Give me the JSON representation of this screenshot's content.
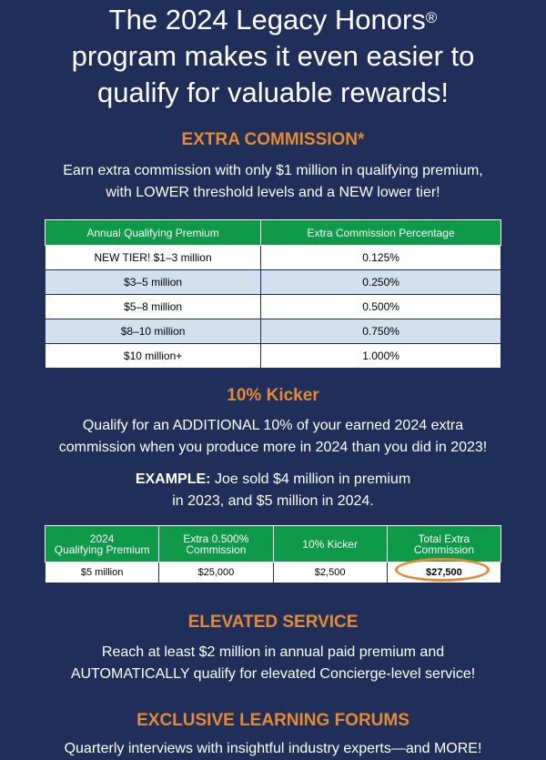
{
  "headline": {
    "line1": "The 2024 Legacy Honors",
    "reg": "®",
    "line2": "program makes it even easier to",
    "line3": "qualify for valuable rewards!"
  },
  "extra_commission": {
    "title": "EXTRA COMMISSION*",
    "line1": "Earn extra commission with only $1 million in qualifying premium,",
    "line2": "with LOWER threshold levels and a NEW lower tier!",
    "table": {
      "headers": [
        "Annual Qualifying Premium",
        "Extra Commission Percentage"
      ],
      "rows": [
        [
          "NEW TIER! $1–3 million",
          "0.125%"
        ],
        [
          "$3–5 million",
          "0.250%"
        ],
        [
          "$5–8 million",
          "0.500%"
        ],
        [
          "$8–10 million",
          "0.750%"
        ],
        [
          "$10 million+",
          "1.000%"
        ]
      ]
    }
  },
  "kicker": {
    "title": "10% Kicker",
    "line1": "Qualify for an ADDITIONAL 10% of your earned 2024 extra",
    "line2": "commission when you produce more in 2024 than you did in 2023!",
    "example_label": "EXAMPLE:",
    "example_line1": " Joe sold $4 million in premium",
    "example_line2": "in 2023, and $5 million in 2024.",
    "table": {
      "headers": [
        [
          "2024",
          "Qualifying Premium"
        ],
        [
          "Extra 0.500%",
          "Commission"
        ],
        [
          "10% Kicker",
          ""
        ],
        [
          "Total Extra",
          "Commission"
        ]
      ],
      "row": [
        "$5 million",
        "$25,000",
        "$2,500",
        "$27,500"
      ]
    }
  },
  "elevated": {
    "title": "ELEVATED SERVICE",
    "line1": "Reach at least $2 million in annual paid premium and",
    "line2": "AUTOMATICALLY qualify for elevated Concierge-level service!"
  },
  "forums": {
    "title": "EXCLUSIVE LEARNING FORUMS",
    "line1": "Quarterly interviews with insightful industry experts—and MORE!"
  },
  "colors": {
    "background": "#1f2f5a",
    "accent": "#e58a32",
    "table_header": "#0e9a48",
    "row_alt": "#d3e0ee"
  }
}
